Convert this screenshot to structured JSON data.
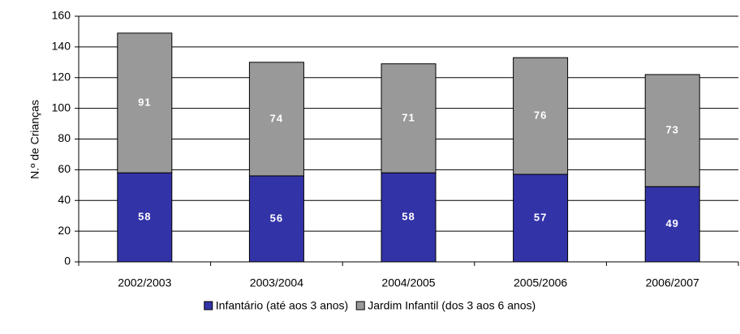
{
  "chart_data": {
    "type": "stacked_bar",
    "y_label": "N.º de Crianças",
    "categories": [
      "2002/2003",
      "2003/2004",
      "2004/2005",
      "2005/2006",
      "2006/2007"
    ],
    "series": [
      {
        "name": "Infantário (até aos 3 anos)",
        "color": "#3333a8",
        "values": [
          58,
          56,
          58,
          57,
          49
        ]
      },
      {
        "name": "Jardim Infantil (dos 3 aos 6 anos)",
        "color": "#999999",
        "values": [
          91,
          74,
          71,
          76,
          73
        ]
      }
    ],
    "ylim": [
      0,
      160
    ],
    "yticks": [
      0,
      20,
      40,
      60,
      80,
      100,
      120,
      140,
      160
    ],
    "grid": true,
    "legend": "bottom"
  }
}
